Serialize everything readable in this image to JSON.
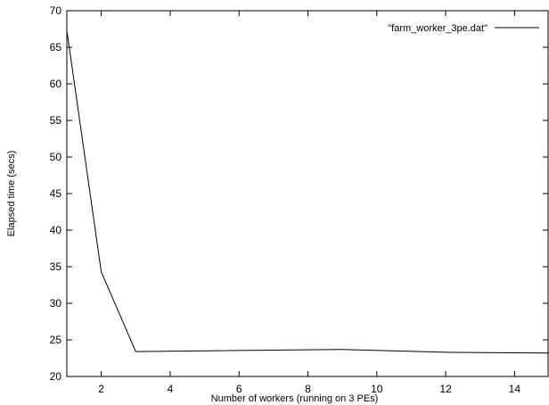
{
  "chart_data": {
    "type": "line",
    "title": "",
    "xlabel": "Number of workers (running on 3 PEs)",
    "ylabel": "Elapsed time (secs)",
    "xlim": [
      1,
      15
    ],
    "ylim": [
      20,
      70
    ],
    "xticks": [
      2,
      4,
      6,
      8,
      10,
      12,
      14
    ],
    "yticks": [
      20,
      25,
      30,
      35,
      40,
      45,
      50,
      55,
      60,
      65,
      70
    ],
    "grid": false,
    "legend_position": "top-right",
    "series": [
      {
        "name": "\"farm_worker_3pe.dat\"",
        "color": "#000000",
        "x": [
          1,
          2,
          3,
          9,
          12,
          15
        ],
        "y": [
          67.3,
          34.3,
          23.4,
          23.7,
          23.3,
          23.2
        ]
      }
    ]
  }
}
